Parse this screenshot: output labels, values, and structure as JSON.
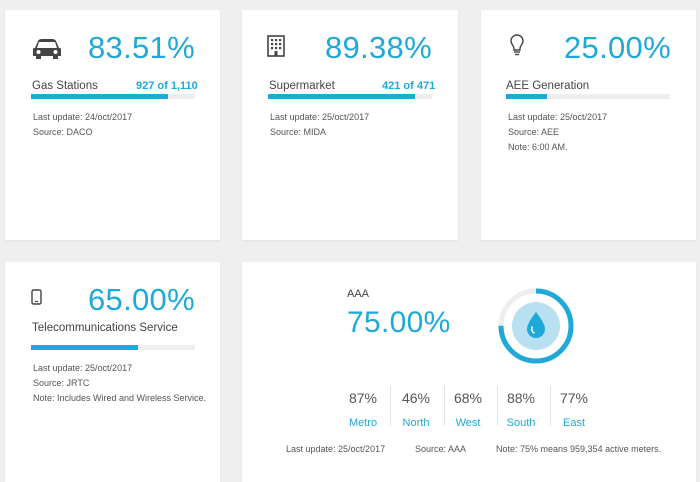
{
  "cards": [
    {
      "icon": "car-icon",
      "percent": "83.51%",
      "label": "Gas Stations",
      "count": "927 of 1,110",
      "progress": 0.8351,
      "last_update": "Last update: 24/oct/2017",
      "source": "Source: DACO"
    },
    {
      "icon": "building-icon",
      "percent": "89.38%",
      "label": "Supermarket",
      "count": "421 of 471",
      "progress": 0.8938,
      "last_update": "Last update: 25/oct/2017",
      "source": "Source: MIDA"
    },
    {
      "icon": "lightbulb-icon",
      "percent": "25.00%",
      "label": "AEE Generation",
      "progress": 0.25,
      "last_update": "Last update: 25/oct/2017",
      "source": "Source: AEE",
      "note": "Note: 6:00 AM."
    },
    {
      "icon": "phone-icon",
      "percent": "65.00%",
      "label": "Telecommunications Service",
      "progress": 0.65,
      "last_update": "Last update: 25/oct/2017",
      "source": "Source: JRTC",
      "note": "Note: Includes Wired and Wireless Service."
    }
  ],
  "water": {
    "title": "AAA",
    "percent": "75.00%",
    "progress": 0.75,
    "icon": "water-drop-icon",
    "regions": [
      {
        "value": "87%",
        "name": "Metro"
      },
      {
        "value": "46%",
        "name": "North"
      },
      {
        "value": "68%",
        "name": "West"
      },
      {
        "value": "88%",
        "name": "South"
      },
      {
        "value": "77%",
        "name": "East"
      }
    ],
    "last_update": "Last update: 25/oct/2017",
    "source": "Source: AAA",
    "note": "Note: 75% means 959,354 active meters."
  },
  "colors": {
    "accent": "#1fa9d8",
    "track": "#eeeeee",
    "background": "#efefef"
  }
}
